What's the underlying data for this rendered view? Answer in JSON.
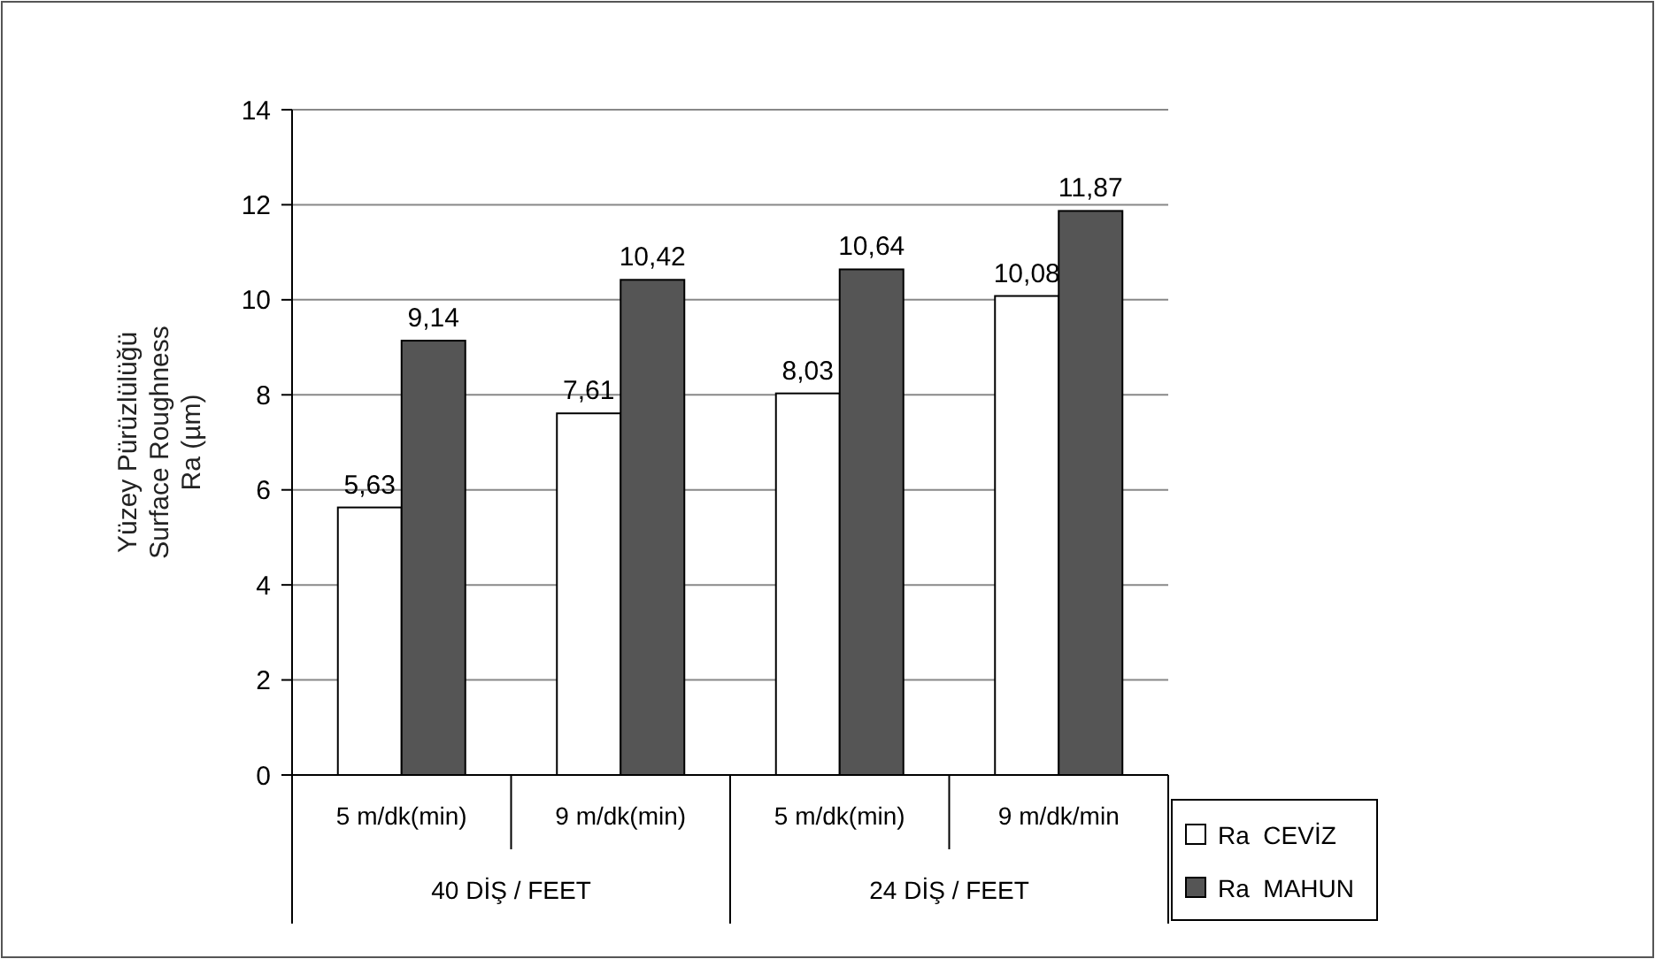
{
  "chart_data": {
    "type": "bar",
    "ylabel": "Yüzey Pürüzlülüğü\nSurface Roughness\nRa (µm)",
    "categories": [
      "5 m/dk(min)",
      "9 m/dk(min)",
      "5 m/dk(min)",
      "9 m/dk/min"
    ],
    "annotations": [
      "40 DİŞ / FEET",
      "24 DİŞ / FEET"
    ],
    "series": [
      {
        "name": "Ra  CEVİZ",
        "color": "#ffffff",
        "values": [
          5.63,
          7.61,
          8.03,
          10.08
        ],
        "value_labels": [
          "5,63",
          "7,61",
          "8,03",
          "10,08"
        ]
      },
      {
        "name": "Ra  MAHUN",
        "color": "#555555",
        "values": [
          9.14,
          10.42,
          10.64,
          11.87
        ],
        "value_labels": [
          "9,14",
          "10,42",
          "10,64",
          "11,87"
        ]
      }
    ],
    "ylim": [
      0,
      14
    ],
    "yticks": [
      0,
      2,
      4,
      6,
      8,
      10,
      12,
      14
    ],
    "grid": "y",
    "legend": "bottom right"
  }
}
